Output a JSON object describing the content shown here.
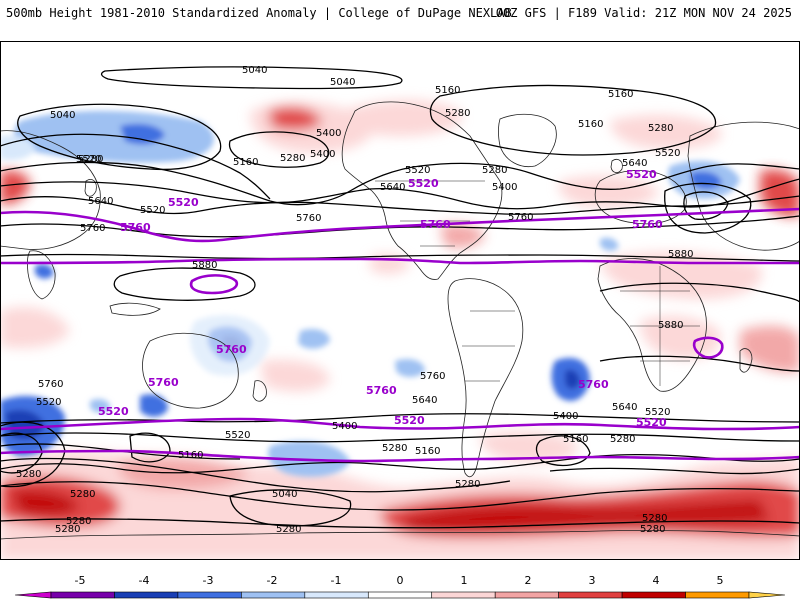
{
  "header": {
    "title_left": "500mb Height 1981-2010 Standardized Anomaly | College of DuPage NEXLAB",
    "title_right": "00Z GFS | F189 Valid: 21Z MON NOV 24 2025"
  },
  "map": {
    "height_labels": {
      "l5040a": "5040",
      "l5040b": "5040",
      "l5040c": "5040",
      "l5040d": "5040",
      "l5160a": "5160",
      "l5160b": "5160",
      "l5160c": "5160",
      "l5160d": "5160",
      "l5160e": "5160",
      "l5160f": "5160",
      "l5160g": "5160",
      "l5280a": "5280",
      "l5280b": "5280",
      "l5280c": "5280",
      "l5280d": "5280",
      "l5280e": "5280",
      "l5280f": "5280",
      "l5280g": "5280",
      "l5280h": "5280",
      "l5280i": "5280",
      "l5280j": "5280",
      "l5280k": "5280",
      "l5280l": "5280",
      "l5280m": "5280",
      "l5280n": "5280",
      "l5280o": "5280",
      "l5400a": "5400",
      "l5400b": "5400",
      "l5400c": "5400",
      "l5400d": "5400",
      "l5400e": "5400",
      "l5520a": "5520",
      "l5520b": "5520",
      "l5520c": "5520",
      "l5520d": "5520",
      "l5520e": "5520",
      "l5520f": "5520",
      "l5520g": "5520",
      "l5640a": "5640",
      "l5640b": "5640",
      "l5640c": "5640",
      "l5640d": "5640",
      "l5640e": "5640",
      "l5760a": "5760",
      "l5760b": "5760",
      "l5760c": "5760",
      "l5760d": "5760",
      "l5760e": "5760",
      "l5880a": "5880",
      "l5880b": "5880",
      "l5880c": "5880"
    },
    "highlight_labels": {
      "p5520a": "5520",
      "p5520b": "5520",
      "p5520c": "5520",
      "p5520d": "5520",
      "p5520e": "5520",
      "p5520f": "5520",
      "p5760a": "5760",
      "p5760b": "5760",
      "p5760c": "5760",
      "p5760d": "5760",
      "p5760e": "5760",
      "p5760f": "5760",
      "p5760g": "5760"
    },
    "colors": {
      "contour": "#000000",
      "highlight_contour": "#9900cc",
      "land_outline": "#222222"
    }
  },
  "colorbar": {
    "labels": [
      "-5",
      "-4",
      "-3",
      "-2",
      "-1",
      "0",
      "1",
      "2",
      "3",
      "4",
      "5"
    ],
    "colors": [
      "#cc00cc",
      "#7700aa",
      "#1a3fb5",
      "#3f6fe0",
      "#9fc1f2",
      "#d8e8fb",
      "#ffffff",
      "#fcd6d6",
      "#f2a4a4",
      "#e04040",
      "#c00000",
      "#ff9a00",
      "#ffd24a"
    ]
  }
}
